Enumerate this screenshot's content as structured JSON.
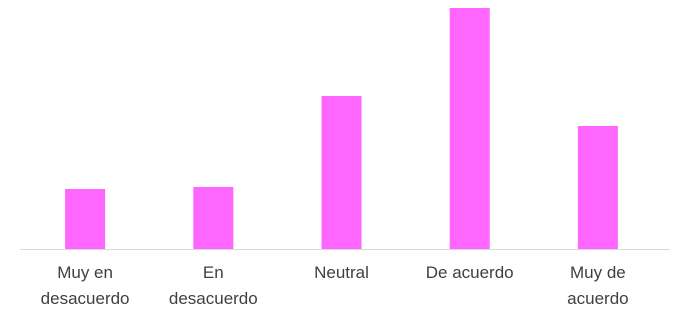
{
  "chart_data": {
    "type": "bar",
    "categories": [
      "Muy en desacuerdo",
      "En desacuerdo",
      "Neutral",
      "De acuerdo",
      "Muy de acuerdo"
    ],
    "values": [
      60,
      62,
      153,
      241,
      123
    ],
    "color": "#ff66ff",
    "ylim": [
      0,
      245
    ]
  }
}
